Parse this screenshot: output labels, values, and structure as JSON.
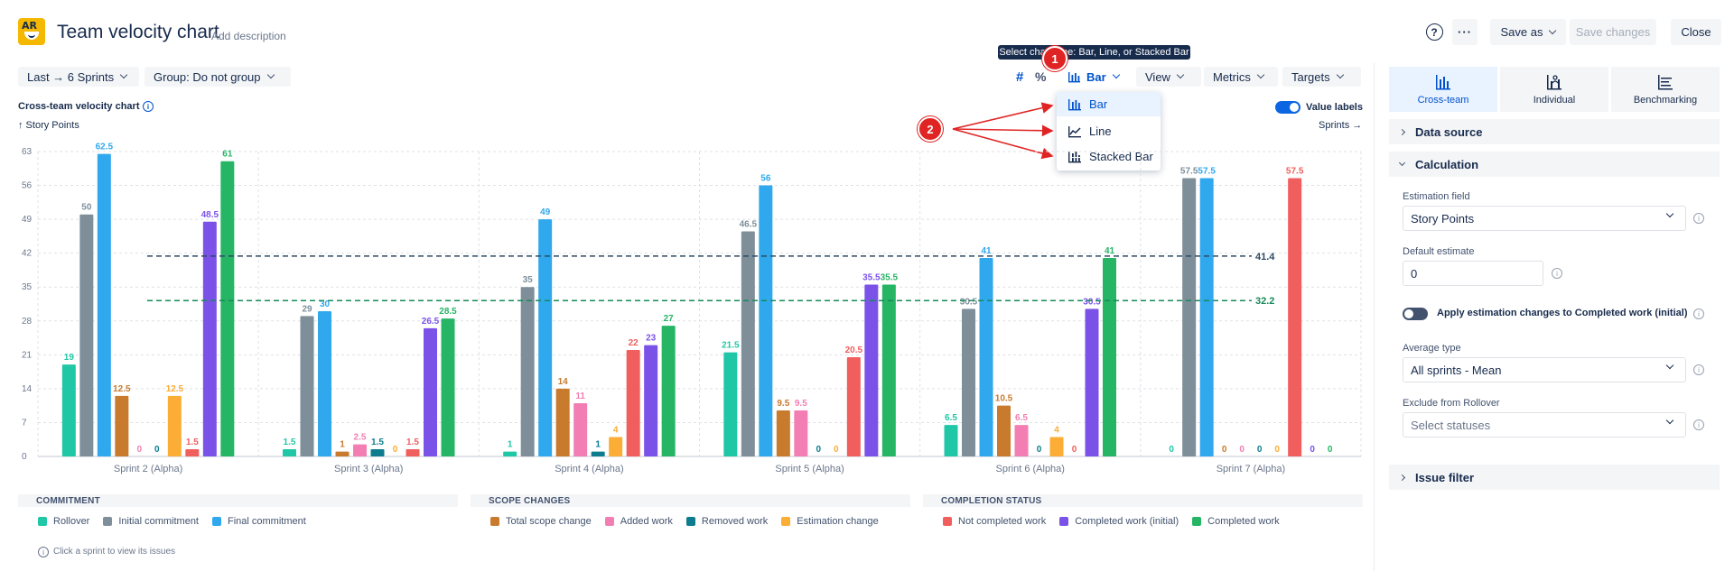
{
  "header": {
    "title": "Team velocity chart",
    "add_description": "Add description",
    "help": "?",
    "more": "···",
    "save_as": "Save as",
    "save_changes": "Save changes",
    "close": "Close",
    "logo_text": "AR"
  },
  "tooltip": "Select chart type: Bar, Line, or Stacked Bar",
  "toolbar": {
    "sprints": "Last → 6 Sprints",
    "group": "Group: Do not group",
    "hash": "#",
    "percent": "%",
    "chart_type": "Bar",
    "view": "View",
    "metrics": "Metrics",
    "targets": "Targets"
  },
  "annotations": {
    "badge1": "1",
    "badge2": "2"
  },
  "dropdown": {
    "items": [
      {
        "label": "Bar",
        "selected": true
      },
      {
        "label": "Line",
        "selected": false
      },
      {
        "label": "Stacked Bar",
        "selected": false
      }
    ]
  },
  "chart_header": {
    "title": "Cross-team velocity chart",
    "info": "i",
    "y_axis": "↑ Story Points",
    "x_axis": "Sprints →",
    "value_labels": "Value labels",
    "value_labels_on": true
  },
  "chart_data": {
    "type": "bar",
    "categories": [
      "Sprint 2 (Alpha)",
      "Sprint 3 (Alpha)",
      "Sprint 4 (Alpha)",
      "Sprint 5 (Alpha)",
      "Sprint 6 (Alpha)",
      "Sprint 7 (Alpha)"
    ],
    "ylim": [
      0,
      63
    ],
    "yticks": [
      "0",
      "7",
      "14",
      "21",
      "28",
      "35",
      "42",
      "49",
      "56",
      "63"
    ],
    "grid": true,
    "series": [
      {
        "name": "Rollover",
        "color": "#1fc7a6",
        "values": [
          19,
          1.5,
          1,
          21.5,
          6.5,
          0
        ]
      },
      {
        "name": "Initial commitment",
        "color": "#7e8f9a",
        "values": [
          50,
          29,
          35,
          46.5,
          30.5,
          57.5
        ]
      },
      {
        "name": "Final commitment",
        "color": "#2fa8ee",
        "values": [
          62.5,
          30,
          49,
          56,
          41,
          57.5
        ]
      },
      {
        "name": "Total scope change",
        "color": "#c87a2d",
        "values": [
          12.5,
          1,
          14,
          9.5,
          10.5,
          0
        ]
      },
      {
        "name": "Added work",
        "color": "#f27eb3",
        "values": [
          0,
          2.5,
          11,
          9.5,
          6.5,
          0
        ]
      },
      {
        "name": "Removed work",
        "color": "#0d7c8e",
        "values": [
          0,
          1.5,
          1,
          0,
          0,
          0
        ]
      },
      {
        "name": "Estimation change",
        "color": "#fbad35",
        "values": [
          12.5,
          0,
          4,
          0,
          4,
          0
        ]
      },
      {
        "name": "Not completed work",
        "color": "#f05e5e",
        "values": [
          1.5,
          1.5,
          22,
          20.5,
          0,
          57.5
        ]
      },
      {
        "name": "Completed work (initial)",
        "color": "#7b52e8",
        "values": [
          48.5,
          26.5,
          23,
          35.5,
          30.5,
          0
        ]
      },
      {
        "name": "Completed work",
        "color": "#26b565",
        "values": [
          61,
          28.5,
          27,
          35.5,
          41,
          0
        ]
      }
    ],
    "value_labels": [
      [
        "19",
        "50",
        "62.5",
        "12.5",
        "0",
        "0",
        "12.5",
        "1.5",
        "48.5",
        "61"
      ],
      [
        "1.5",
        "29",
        "30",
        "1",
        "2.5",
        "1.5",
        "0",
        "1.5",
        "26.5",
        "28.5"
      ],
      [
        "1",
        "35",
        "49",
        "14",
        "11",
        "1",
        "4",
        "22",
        "23",
        "27"
      ],
      [
        "21.5",
        "46.5",
        "56",
        "9.5",
        "9.5",
        "0",
        "0",
        "20.5",
        "35.5",
        "35.5"
      ],
      [
        "6.5",
        "30.5",
        "41",
        "10.5",
        "6.5",
        "0",
        "4",
        "0",
        "30.5",
        "41"
      ],
      [
        "0",
        "57.5",
        "57.5",
        "0",
        "0",
        "0",
        "0",
        "57.5",
        "0",
        "0"
      ]
    ],
    "targets": [
      {
        "value": 41.4,
        "label": "41.4",
        "color": "#2c4a63"
      },
      {
        "value": 32.2,
        "label": "32.2",
        "color": "#178a5a"
      }
    ]
  },
  "legend": {
    "groups": [
      {
        "title": "COMMITMENT",
        "items": [
          {
            "label": "Rollover",
            "color": "#1fc7a6"
          },
          {
            "label": "Initial commitment",
            "color": "#7e8f9a"
          },
          {
            "label": "Final commitment",
            "color": "#2fa8ee"
          }
        ]
      },
      {
        "title": "SCOPE CHANGES",
        "items": [
          {
            "label": "Total scope change",
            "color": "#c87a2d"
          },
          {
            "label": "Added work",
            "color": "#f27eb3"
          },
          {
            "label": "Removed work",
            "color": "#0d7c8e"
          },
          {
            "label": "Estimation change",
            "color": "#fbad35"
          }
        ]
      },
      {
        "title": "COMPLETION STATUS",
        "items": [
          {
            "label": "Not completed work",
            "color": "#f05e5e"
          },
          {
            "label": "Completed work (initial)",
            "color": "#7b52e8"
          },
          {
            "label": "Completed work",
            "color": "#26b565"
          }
        ]
      }
    ],
    "hint": "Click a sprint to view its issues",
    "hint_icon": "i"
  },
  "panel": {
    "tabs": [
      {
        "label": "Cross-team",
        "active": true
      },
      {
        "label": "Individual",
        "active": false
      },
      {
        "label": "Benchmarking",
        "active": false
      }
    ],
    "sections": {
      "data_source": "Data source",
      "calculation": "Calculation",
      "issue_filter": "Issue filter"
    },
    "estimation_field_label": "Estimation field",
    "estimation_field_value": "Story Points",
    "default_estimate_label": "Default estimate",
    "default_estimate_value": "0",
    "apply_estimation_label": "Apply estimation changes to Completed work (initial)",
    "average_type_label": "Average type",
    "average_type_value": "All sprints - Mean",
    "exclude_label": "Exclude from Rollover",
    "exclude_placeholder": "Select statuses",
    "help_icon": "i"
  }
}
